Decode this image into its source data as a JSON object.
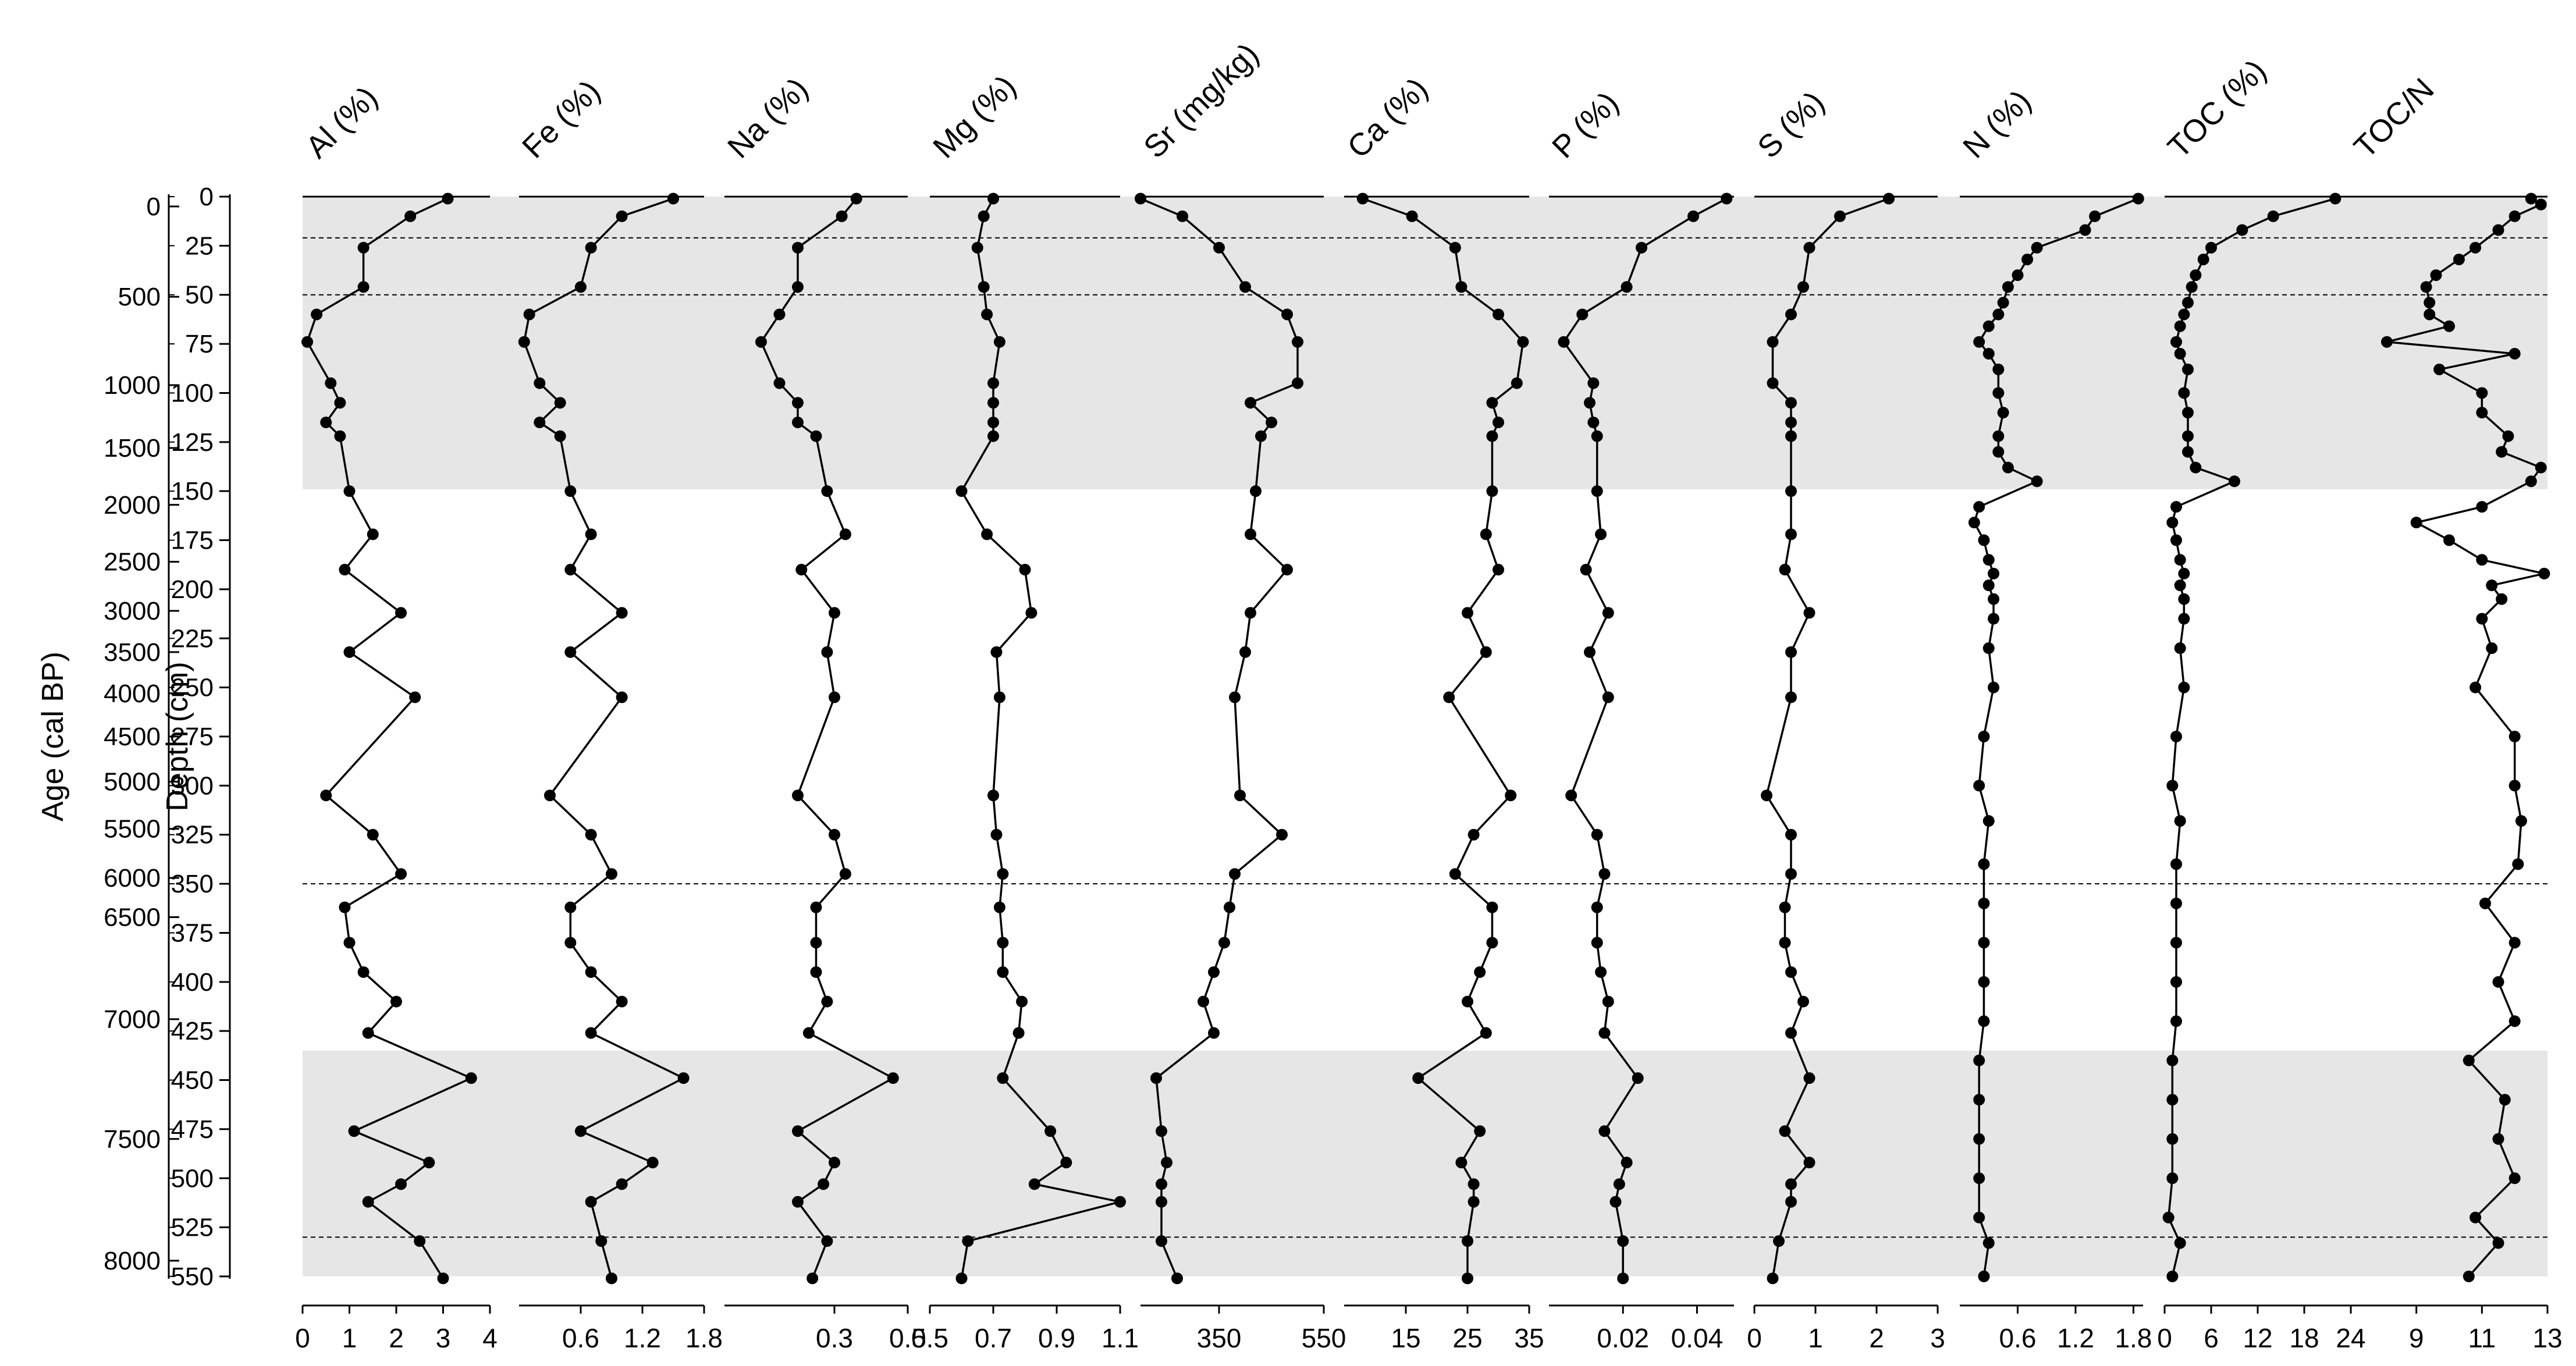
{
  "chart_data": {
    "type": "line",
    "title": "",
    "depth_axis": {
      "label": "Depth (cm)",
      "range": [
        0,
        550
      ],
      "ticks": [
        0,
        25,
        50,
        75,
        100,
        125,
        150,
        175,
        200,
        225,
        250,
        275,
        300,
        325,
        350,
        375,
        400,
        425,
        450,
        475,
        500,
        525,
        550
      ]
    },
    "age_axis": {
      "label": "Age (cal BP)",
      "ticks": [
        {
          "age": 0,
          "depth": 5
        },
        {
          "age": 500,
          "depth": 51
        },
        {
          "age": 1000,
          "depth": 96
        },
        {
          "age": 1500,
          "depth": 128
        },
        {
          "age": 2000,
          "depth": 157
        },
        {
          "age": 2500,
          "depth": 186
        },
        {
          "age": 3000,
          "depth": 211
        },
        {
          "age": 3500,
          "depth": 232
        },
        {
          "age": 4000,
          "depth": 253
        },
        {
          "age": 4500,
          "depth": 275
        },
        {
          "age": 5000,
          "depth": 298
        },
        {
          "age": 5500,
          "depth": 322
        },
        {
          "age": 6000,
          "depth": 347
        },
        {
          "age": 6500,
          "depth": 367
        },
        {
          "age": 7000,
          "depth": 419
        },
        {
          "age": 7500,
          "depth": 480
        },
        {
          "age": 8000,
          "depth": 542
        }
      ]
    },
    "shaded_intervals": [
      [
        0,
        149
      ],
      [
        435,
        550
      ]
    ],
    "boundary_lines": [
      21,
      50,
      350,
      530
    ],
    "panels": [
      {
        "name": "Al (%)",
        "xlim": [
          0,
          4
        ],
        "ticks": [
          "0",
          "1",
          "2",
          "3",
          "4"
        ],
        "depth": [
          1,
          10,
          26,
          46,
          60,
          74,
          95,
          105,
          115,
          122,
          150,
          172,
          190,
          212,
          232,
          255,
          305,
          325,
          345,
          362,
          380,
          395,
          410,
          426,
          449,
          476,
          492,
          503,
          512,
          532,
          551
        ],
        "values": [
          3.1,
          2.3,
          1.3,
          1.3,
          0.3,
          0.1,
          0.6,
          0.8,
          0.5,
          0.8,
          1.0,
          1.5,
          0.9,
          2.1,
          1.0,
          2.4,
          0.5,
          1.5,
          2.1,
          0.9,
          1.0,
          1.3,
          2.0,
          1.4,
          3.6,
          1.1,
          2.7,
          2.1,
          1.4,
          2.5,
          3.0
        ]
      },
      {
        "name": "Fe (%)",
        "xlim": [
          0,
          1.8
        ],
        "ticks": [
          "0.6",
          "1.2",
          "1.8"
        ],
        "depth": [
          1,
          10,
          26,
          46,
          60,
          74,
          95,
          105,
          115,
          122,
          150,
          172,
          190,
          212,
          232,
          255,
          305,
          325,
          345,
          362,
          380,
          395,
          410,
          426,
          449,
          476,
          492,
          503,
          512,
          532,
          551
        ],
        "values": [
          1.5,
          1.0,
          0.7,
          0.6,
          0.1,
          0.05,
          0.2,
          0.4,
          0.2,
          0.4,
          0.5,
          0.7,
          0.5,
          1.0,
          0.5,
          1.0,
          0.3,
          0.7,
          0.9,
          0.5,
          0.5,
          0.7,
          1.0,
          0.7,
          1.6,
          0.6,
          1.3,
          1.0,
          0.7,
          0.8,
          0.9
        ]
      },
      {
        "name": "Na (%)",
        "xlim": [
          0,
          0.5
        ],
        "ticks": [
          "0.3",
          "0.5"
        ],
        "depth": [
          1,
          10,
          26,
          46,
          60,
          74,
          95,
          105,
          115,
          122,
          150,
          172,
          190,
          212,
          232,
          255,
          305,
          325,
          345,
          362,
          380,
          395,
          410,
          426,
          449,
          476,
          492,
          503,
          512,
          532,
          551
        ],
        "values": [
          0.36,
          0.32,
          0.2,
          0.2,
          0.15,
          0.1,
          0.15,
          0.2,
          0.2,
          0.25,
          0.28,
          0.33,
          0.21,
          0.3,
          0.28,
          0.3,
          0.2,
          0.3,
          0.33,
          0.25,
          0.25,
          0.25,
          0.28,
          0.23,
          0.46,
          0.2,
          0.3,
          0.27,
          0.2,
          0.28,
          0.24
        ]
      },
      {
        "name": "Mg (%)",
        "xlim": [
          0.5,
          1.1
        ],
        "ticks": [
          "0.5",
          "0.7",
          "0.9",
          "1.1"
        ],
        "depth": [
          1,
          10,
          26,
          46,
          60,
          74,
          95,
          105,
          115,
          122,
          150,
          172,
          190,
          212,
          232,
          255,
          305,
          325,
          345,
          362,
          380,
          395,
          410,
          426,
          449,
          476,
          492,
          503,
          512,
          532,
          551
        ],
        "values": [
          0.7,
          0.67,
          0.65,
          0.67,
          0.68,
          0.72,
          0.7,
          0.7,
          0.7,
          0.7,
          0.6,
          0.68,
          0.8,
          0.82,
          0.71,
          0.72,
          0.7,
          0.71,
          0.73,
          0.72,
          0.73,
          0.73,
          0.79,
          0.78,
          0.73,
          0.88,
          0.93,
          0.83,
          1.1,
          0.62,
          0.6
        ]
      },
      {
        "name": "Sr (mg/kg)",
        "xlim": [
          200,
          550
        ],
        "ticks": [
          "350",
          "550"
        ],
        "depth": [
          1,
          10,
          26,
          46,
          60,
          74,
          95,
          105,
          115,
          122,
          150,
          172,
          190,
          212,
          232,
          255,
          305,
          325,
          345,
          362,
          380,
          395,
          410,
          426,
          449,
          476,
          492,
          503,
          512,
          532,
          551
        ],
        "values": [
          200,
          280,
          350,
          400,
          480,
          500,
          500,
          410,
          450,
          430,
          420,
          410,
          480,
          410,
          400,
          380,
          390,
          470,
          380,
          370,
          360,
          340,
          320,
          340,
          230,
          240,
          250,
          240,
          240,
          240,
          270
        ]
      },
      {
        "name": "Ca (%)",
        "xlim": [
          5,
          35
        ],
        "ticks": [
          "15",
          "25",
          "35"
        ],
        "depth": [
          1,
          10,
          26,
          46,
          60,
          74,
          95,
          105,
          115,
          122,
          150,
          172,
          190,
          212,
          232,
          255,
          305,
          325,
          345,
          362,
          380,
          395,
          410,
          426,
          449,
          476,
          492,
          503,
          512,
          532,
          551
        ],
        "values": [
          8,
          16,
          23,
          24,
          30,
          34,
          33,
          29,
          30,
          29,
          29,
          28,
          30,
          25,
          28,
          22,
          32,
          26,
          23,
          29,
          29,
          27,
          25,
          28,
          17,
          27,
          24,
          26,
          26,
          25,
          25
        ]
      },
      {
        "name": "P (%)",
        "xlim": [
          0,
          0.05
        ],
        "ticks": [
          "0.02",
          "0.04"
        ],
        "depth": [
          1,
          10,
          26,
          46,
          60,
          74,
          95,
          105,
          115,
          122,
          150,
          172,
          190,
          212,
          232,
          255,
          305,
          325,
          345,
          362,
          380,
          395,
          410,
          426,
          449,
          476,
          492,
          503,
          512,
          532,
          551
        ],
        "values": [
          0.048,
          0.039,
          0.025,
          0.021,
          0.009,
          0.004,
          0.012,
          0.011,
          0.012,
          0.013,
          0.013,
          0.014,
          0.01,
          0.016,
          0.011,
          0.016,
          0.006,
          0.013,
          0.015,
          0.013,
          0.013,
          0.014,
          0.016,
          0.015,
          0.024,
          0.015,
          0.021,
          0.019,
          0.018,
          0.02,
          0.02
        ]
      },
      {
        "name": "S (%)",
        "xlim": [
          0,
          3
        ],
        "ticks": [
          "0",
          "1",
          "2",
          "3"
        ],
        "depth": [
          1,
          10,
          26,
          46,
          60,
          74,
          95,
          105,
          115,
          122,
          150,
          172,
          190,
          212,
          232,
          255,
          305,
          325,
          345,
          362,
          380,
          395,
          410,
          426,
          449,
          476,
          492,
          503,
          512,
          532,
          551
        ],
        "values": [
          2.2,
          1.4,
          0.9,
          0.8,
          0.6,
          0.3,
          0.3,
          0.6,
          0.6,
          0.6,
          0.6,
          0.6,
          0.5,
          0.9,
          0.6,
          0.6,
          0.2,
          0.6,
          0.6,
          0.5,
          0.5,
          0.6,
          0.8,
          0.6,
          0.9,
          0.5,
          0.9,
          0.6,
          0.6,
          0.4,
          0.3
        ]
      },
      {
        "name": "N (%)",
        "xlim": [
          0,
          1.9
        ],
        "ticks": [
          "0.6",
          "1.2",
          "1.8"
        ],
        "depth": [
          1,
          10,
          17,
          26,
          32,
          40,
          46,
          54,
          60,
          66,
          74,
          80,
          88,
          100,
          110,
          122,
          130,
          138,
          145,
          158,
          166,
          175,
          185,
          192,
          198,
          205,
          215,
          230,
          250,
          275,
          300,
          318,
          340,
          360,
          380,
          400,
          420,
          440,
          460,
          480,
          500,
          520,
          533,
          550
        ],
        "values": [
          1.85,
          1.4,
          1.3,
          0.8,
          0.7,
          0.6,
          0.5,
          0.45,
          0.4,
          0.3,
          0.2,
          0.3,
          0.4,
          0.4,
          0.45,
          0.4,
          0.4,
          0.5,
          0.8,
          0.2,
          0.15,
          0.25,
          0.3,
          0.35,
          0.3,
          0.35,
          0.35,
          0.3,
          0.35,
          0.25,
          0.2,
          0.3,
          0.25,
          0.25,
          0.25,
          0.25,
          0.25,
          0.2,
          0.2,
          0.2,
          0.2,
          0.2,
          0.3,
          0.25
        ]
      },
      {
        "name": "TOC (%)",
        "xlim": [
          0,
          24
        ],
        "ticks": [
          "0",
          "6",
          "12",
          "18",
          "24"
        ],
        "depth": [
          1,
          10,
          17,
          26,
          32,
          40,
          46,
          54,
          60,
          66,
          74,
          80,
          88,
          100,
          110,
          122,
          130,
          138,
          145,
          158,
          166,
          175,
          185,
          192,
          198,
          205,
          215,
          230,
          250,
          275,
          300,
          318,
          340,
          360,
          380,
          400,
          420,
          440,
          460,
          480,
          500,
          520,
          533,
          550
        ],
        "values": [
          22,
          14,
          10,
          6,
          5,
          4,
          3.5,
          3,
          2.5,
          2,
          1.5,
          2,
          3,
          2.5,
          3,
          3,
          3,
          4,
          9,
          1.5,
          1,
          1.5,
          2,
          2.5,
          2,
          2.5,
          2.5,
          2,
          2.5,
          1.5,
          1,
          2,
          1.5,
          1.5,
          1.5,
          1.5,
          1.5,
          1,
          1,
          1,
          1,
          0.5,
          2,
          1
        ]
      },
      {
        "name": "TOC/N",
        "xlim": [
          7,
          13
        ],
        "ticks": [
          "9",
          "11",
          "13"
        ],
        "depth": [
          1,
          4,
          10,
          17,
          26,
          32,
          40,
          46,
          54,
          60,
          66,
          74,
          80,
          88,
          100,
          110,
          122,
          130,
          138,
          145,
          158,
          166,
          175,
          185,
          192,
          198,
          205,
          215,
          230,
          250,
          275,
          300,
          318,
          340,
          360,
          380,
          400,
          420,
          440,
          460,
          480,
          500,
          520,
          533,
          550
        ],
        "values": [
          12.5,
          12.8,
          12.0,
          11.5,
          10.8,
          10.3,
          9.6,
          9.3,
          9.4,
          9.4,
          10.0,
          8.1,
          12.0,
          9.7,
          11.0,
          11.0,
          11.8,
          11.6,
          12.8,
          12.5,
          11.0,
          9.0,
          10.0,
          11.0,
          12.9,
          11.3,
          11.6,
          11.0,
          11.3,
          10.8,
          12.0,
          12.0,
          12.2,
          12.1,
          11.1,
          12.0,
          11.5,
          12.0,
          10.6,
          11.7,
          11.5,
          12.0,
          10.8,
          11.5,
          10.6
        ]
      }
    ]
  }
}
